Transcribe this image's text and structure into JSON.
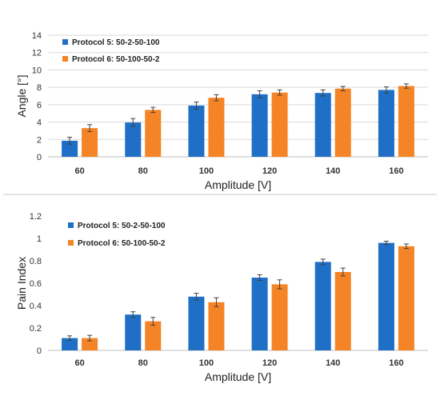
{
  "charts": {
    "colors": {
      "protocol5": "#1F6FC6",
      "protocol6": "#F58426",
      "divider": "#c8c8c8"
    },
    "chart_data": [
      {
        "type": "bar",
        "title": "",
        "xlabel": "Amplitude [V]",
        "ylabel": "Angle [°]",
        "ylim": [
          0,
          14
        ],
        "yticks": [
          0,
          2,
          4,
          6,
          8,
          10,
          12,
          14
        ],
        "grid": true,
        "legend": "top-left",
        "categories": [
          "60",
          "80",
          "100",
          "120",
          "140",
          "160"
        ],
        "series": [
          {
            "name": "Protocol 5: 50-2-50-100",
            "color": "#1F6FC6",
            "values": [
              1.85,
              3.95,
              5.9,
              7.2,
              7.35,
              7.7
            ],
            "errors": [
              0.4,
              0.45,
              0.4,
              0.4,
              0.35,
              0.35
            ]
          },
          {
            "name": "Protocol 6: 50-100-50-2",
            "color": "#F58426",
            "values": [
              3.3,
              5.4,
              6.8,
              7.4,
              7.85,
              8.15
            ],
            "errors": [
              0.4,
              0.3,
              0.35,
              0.3,
              0.25,
              0.25
            ]
          }
        ]
      },
      {
        "type": "bar",
        "title": "",
        "xlabel": "Amplitude [V]",
        "ylabel": "Pain Index",
        "ylim": [
          0,
          1.2
        ],
        "yticks": [
          0,
          0.2,
          0.4,
          0.6,
          0.8,
          1,
          1.2
        ],
        "grid": false,
        "legend": "top-left",
        "categories": [
          "60",
          "80",
          "100",
          "120",
          "140",
          "160"
        ],
        "series": [
          {
            "name": "Protocol 5: 50-2-50-100",
            "color": "#1F6FC6",
            "values": [
              0.11,
              0.32,
              0.48,
              0.65,
              0.79,
              0.96
            ],
            "errors": [
              0.02,
              0.025,
              0.03,
              0.025,
              0.025,
              0.015
            ]
          },
          {
            "name": "Protocol 6: 50-100-50-2",
            "color": "#F58426",
            "values": [
              0.11,
              0.26,
              0.43,
              0.59,
              0.7,
              0.93
            ],
            "errors": [
              0.025,
              0.035,
              0.04,
              0.04,
              0.035,
              0.02
            ]
          }
        ]
      }
    ]
  }
}
